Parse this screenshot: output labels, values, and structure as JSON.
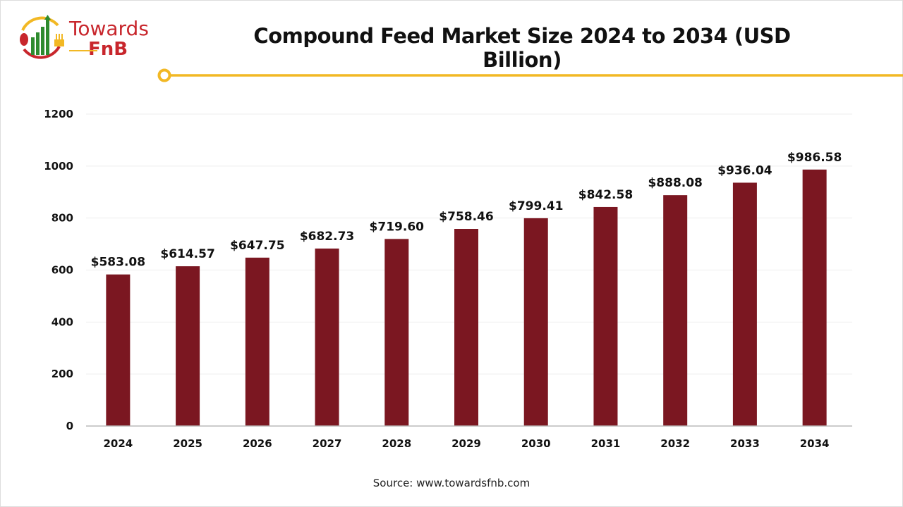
{
  "logo": {
    "line1": "Towards",
    "line2": "FnB",
    "colors": {
      "red": "#c8262c",
      "green": "#2e8b2e",
      "yellow": "#f2b824"
    }
  },
  "accent_color": "#f2b824",
  "source": "Source: www.towardsfnb.com",
  "chart_data": {
    "type": "bar",
    "title": "Compound Feed Market Size 2024 to 2034 (USD Billion)",
    "categories": [
      "2024",
      "2025",
      "2026",
      "2027",
      "2028",
      "2029",
      "2030",
      "2031",
      "2032",
      "2033",
      "2034"
    ],
    "values": [
      583.08,
      614.57,
      647.75,
      682.73,
      719.6,
      758.46,
      799.41,
      842.58,
      888.08,
      936.04,
      986.58
    ],
    "data_labels": [
      "$583.08",
      "$614.57",
      "$647.75",
      "$682.73",
      "$719.60",
      "$758.46",
      "$799.41",
      "$842.58",
      "$888.08",
      "$936.04",
      "$986.58"
    ],
    "yticks": [
      "0",
      "200",
      "400",
      "600",
      "800",
      "1000",
      "1200"
    ],
    "ylim": [
      0,
      1200
    ],
    "xlabel": "",
    "ylabel": "",
    "grid": true,
    "bar_color": "#7b1721"
  }
}
